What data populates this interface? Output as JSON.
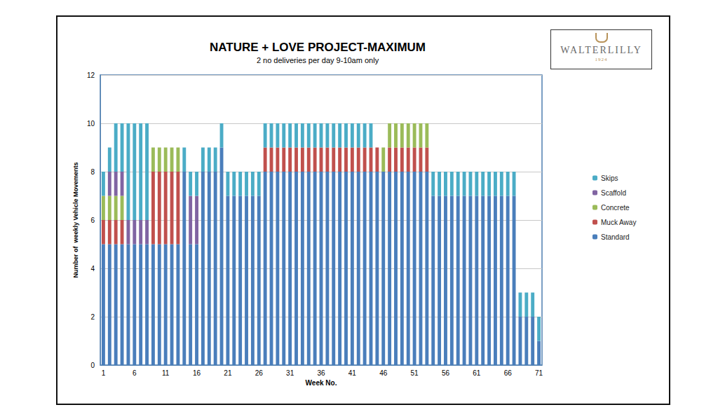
{
  "chart_data": {
    "type": "bar",
    "title": "NATURE + LOVE PROJECT-MAXIMUM",
    "subtitle": "2 no deliveries per day 9-10am only",
    "x_label": "Week No.",
    "y_label": "Number of  weekly Vehicle Movements",
    "categories": [
      1,
      null,
      null,
      null,
      null,
      6,
      null,
      null,
      null,
      null,
      11,
      null,
      null,
      null,
      null,
      16,
      null,
      null,
      null,
      null,
      21,
      null,
      null,
      null,
      null,
      26,
      null,
      null,
      null,
      null,
      31,
      null,
      null,
      null,
      null,
      36,
      null,
      null,
      null,
      null,
      41,
      null,
      null,
      null,
      null,
      46,
      null,
      null,
      null,
      null,
      51,
      null,
      null,
      null,
      null,
      56,
      null,
      null,
      null,
      null,
      61,
      null,
      null,
      null,
      null,
      66,
      null,
      null,
      null,
      null,
      71
    ],
    "series": [
      {
        "name": "Standard",
        "color": "#4a7ebb",
        "values": [
          5,
          5,
          5,
          5,
          5,
          5,
          5,
          5,
          5,
          5,
          5,
          5,
          5,
          8,
          5,
          5,
          8,
          8,
          8,
          9,
          7,
          7,
          7,
          7,
          7,
          7,
          8,
          8,
          8,
          8,
          8,
          8,
          8,
          8,
          8,
          8,
          8,
          8,
          8,
          8,
          8,
          8,
          8,
          8,
          8,
          8,
          8,
          8,
          8,
          8,
          8,
          8,
          8,
          7,
          7,
          7,
          7,
          7,
          7,
          7,
          7,
          7,
          7,
          7,
          7,
          7,
          7,
          2,
          2,
          2,
          1
        ]
      },
      {
        "name": "Muck Away",
        "color": "#c0504d",
        "values": [
          1,
          1,
          1,
          1,
          0,
          0,
          0,
          0,
          3,
          3,
          3,
          3,
          3,
          0,
          0,
          0,
          0,
          0,
          0,
          0,
          0,
          0,
          0,
          0,
          0,
          0,
          1,
          1,
          1,
          1,
          1,
          1,
          1,
          1,
          1,
          1,
          1,
          1,
          1,
          1,
          1,
          1,
          1,
          1,
          1,
          0,
          1,
          1,
          1,
          1,
          1,
          1,
          1,
          0,
          0,
          0,
          0,
          0,
          0,
          0,
          0,
          0,
          0,
          0,
          0,
          0,
          0,
          0,
          0,
          0,
          0
        ]
      },
      {
        "name": "Concrete",
        "color": "#9bbb59",
        "values": [
          1,
          1,
          1,
          1,
          0,
          0,
          0,
          0,
          1,
          1,
          1,
          1,
          1,
          0,
          0,
          0,
          0,
          0,
          0,
          0,
          0,
          0,
          0,
          0,
          0,
          0,
          0,
          0,
          0,
          0,
          0,
          0,
          0,
          0,
          0,
          0,
          0,
          0,
          0,
          0,
          0,
          0,
          0,
          0,
          0,
          1,
          1,
          1,
          1,
          1,
          1,
          1,
          1,
          0,
          0,
          0,
          0,
          0,
          0,
          0,
          0,
          0,
          0,
          0,
          0,
          0,
          0,
          0,
          0,
          0,
          0
        ]
      },
      {
        "name": "Scaffold",
        "color": "#8064a2",
        "values": [
          0,
          1,
          1,
          1,
          1,
          1,
          1,
          1,
          0,
          0,
          0,
          0,
          0,
          0,
          2,
          2,
          0,
          0,
          0,
          0,
          0,
          0,
          0,
          0,
          0,
          0,
          0,
          0,
          0,
          0,
          0,
          0,
          0,
          0,
          0,
          0,
          0,
          0,
          0,
          0,
          0,
          0,
          0,
          0,
          0,
          0,
          0,
          0,
          0,
          0,
          0,
          0,
          0,
          0,
          0,
          0,
          0,
          0,
          0,
          0,
          0,
          0,
          0,
          0,
          0,
          0,
          0,
          0,
          0,
          0,
          0
        ]
      },
      {
        "name": "Skips",
        "color": "#4bacc6",
        "values": [
          1,
          1,
          2,
          2,
          4,
          4,
          4,
          4,
          0,
          0,
          0,
          0,
          0,
          1,
          1,
          1,
          1,
          1,
          1,
          1,
          1,
          1,
          1,
          1,
          1,
          1,
          1,
          1,
          1,
          1,
          1,
          1,
          1,
          1,
          1,
          1,
          1,
          1,
          1,
          1,
          1,
          1,
          1,
          1,
          0,
          0,
          0,
          0,
          0,
          0,
          0,
          0,
          0,
          1,
          1,
          1,
          1,
          1,
          1,
          1,
          1,
          1,
          1,
          1,
          1,
          1,
          1,
          1,
          1,
          1,
          1
        ]
      }
    ],
    "stacked": true,
    "ylim": [
      0,
      12
    ],
    "yticks": [
      0,
      2,
      4,
      6,
      8,
      10,
      12
    ],
    "grid": true,
    "legend": "right"
  },
  "logo": {
    "name": "WALTERLILLY",
    "year": "1924"
  }
}
